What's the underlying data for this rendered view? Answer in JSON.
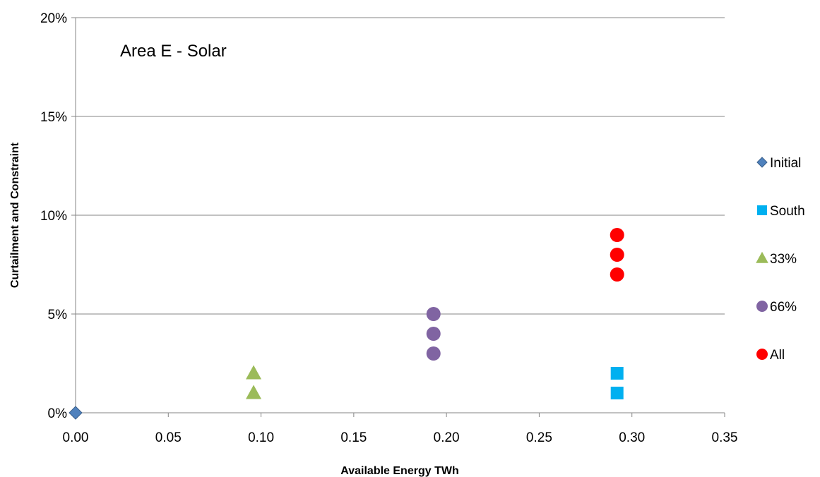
{
  "chart_data": {
    "type": "scatter",
    "annotation": "Area E - Solar",
    "xlabel": "Available Energy TWh",
    "ylabel": "Curtailment and Constraint",
    "xlim": [
      0,
      0.35
    ],
    "ylim": [
      0,
      0.2
    ],
    "x_ticks": [
      "0.00",
      "0.05",
      "0.10",
      "0.15",
      "0.20",
      "0.25",
      "0.30",
      "0.35"
    ],
    "y_ticks": [
      "0%",
      "5%",
      "10%",
      "15%",
      "20%"
    ],
    "grid": "horizontal",
    "legend_position": "right",
    "series": [
      {
        "name": "Initial",
        "marker": "diamond",
        "color": "#4F81BD",
        "points": [
          {
            "x": 0.0,
            "y": 0.0
          }
        ]
      },
      {
        "name": "South",
        "marker": "square",
        "color": "#00B0F0",
        "points": [
          {
            "x": 0.292,
            "y": 0.01
          },
          {
            "x": 0.292,
            "y": 0.02
          }
        ]
      },
      {
        "name": "33%",
        "marker": "triangle",
        "color": "#9BBB59",
        "points": [
          {
            "x": 0.096,
            "y": 0.01
          },
          {
            "x": 0.096,
            "y": 0.02
          }
        ]
      },
      {
        "name": "66%",
        "marker": "circle",
        "color": "#8064A2",
        "points": [
          {
            "x": 0.193,
            "y": 0.03
          },
          {
            "x": 0.193,
            "y": 0.04
          },
          {
            "x": 0.193,
            "y": 0.05
          }
        ]
      },
      {
        "name": "All",
        "marker": "circle",
        "color": "#FF0000",
        "points": [
          {
            "x": 0.292,
            "y": 0.07
          },
          {
            "x": 0.292,
            "y": 0.08
          },
          {
            "x": 0.292,
            "y": 0.09
          }
        ]
      }
    ]
  }
}
